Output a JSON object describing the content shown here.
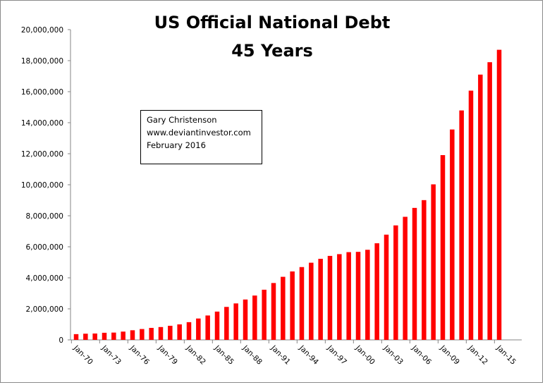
{
  "chart_data": {
    "type": "bar",
    "title": "US Official National Debt",
    "subtitle": "45 Years",
    "xlabel": "",
    "ylabel": "",
    "ylim": [
      0,
      20000000
    ],
    "yticks": [
      "0",
      "2,000,000",
      "4,000,000",
      "6,000,000",
      "8,000,000",
      "10,000,000",
      "12,000,000",
      "14,000,000",
      "16,000,000",
      "18,000,000",
      "20,000,000"
    ],
    "xtick_labels": [
      "Jan-70",
      "Jan-73",
      "Jan-76",
      "Jan-79",
      "Jan-82",
      "Jan-85",
      "Jan-88",
      "Jan-91",
      "Jan-94",
      "Jan-97",
      "Jan-00",
      "Jan-03",
      "Jan-06",
      "Jan-09",
      "Jan-12",
      "Jan-15"
    ],
    "categories": [
      "Jan-70",
      "Jan-71",
      "Jan-72",
      "Jan-73",
      "Jan-74",
      "Jan-75",
      "Jan-76",
      "Jan-77",
      "Jan-78",
      "Jan-79",
      "Jan-80",
      "Jan-81",
      "Jan-82",
      "Jan-83",
      "Jan-84",
      "Jan-85",
      "Jan-86",
      "Jan-87",
      "Jan-88",
      "Jan-89",
      "Jan-90",
      "Jan-91",
      "Jan-92",
      "Jan-93",
      "Jan-94",
      "Jan-95",
      "Jan-96",
      "Jan-97",
      "Jan-98",
      "Jan-99",
      "Jan-00",
      "Jan-01",
      "Jan-02",
      "Jan-03",
      "Jan-04",
      "Jan-05",
      "Jan-06",
      "Jan-07",
      "Jan-08",
      "Jan-09",
      "Jan-10",
      "Jan-11",
      "Jan-12",
      "Jan-13",
      "Jan-14",
      "Jan-15"
    ],
    "values": [
      370000,
      398000,
      410000,
      458000,
      470000,
      533000,
      620000,
      699000,
      772000,
      827000,
      908000,
      998000,
      1142000,
      1377000,
      1572000,
      1823000,
      2125000,
      2350000,
      2602000,
      2857000,
      3233000,
      3665000,
      4065000,
      4411000,
      4693000,
      4974000,
      5225000,
      5413000,
      5526000,
      5656000,
      5674000,
      5807000,
      6228000,
      6783000,
      7379000,
      7933000,
      8507000,
      9008000,
      10025000,
      11910000,
      13562000,
      14790000,
      16066000,
      17100000,
      17900000,
      18700000
    ],
    "grid": false,
    "legend": "none",
    "bar_color": "#ff0000",
    "annotation": [
      "Gary Christenson",
      "www.deviantinvestor.com",
      "February 2016"
    ]
  }
}
